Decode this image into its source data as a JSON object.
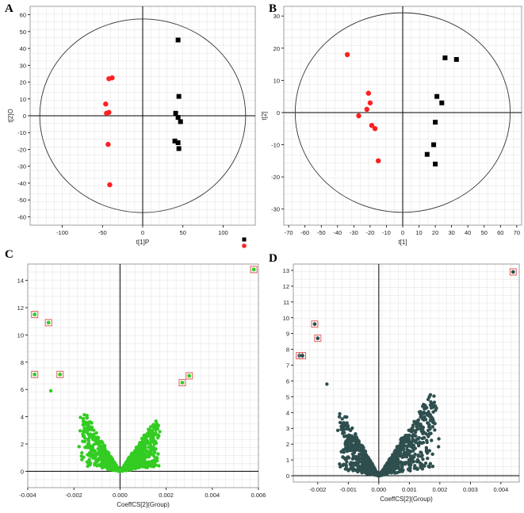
{
  "panel_letters": {
    "a": "A",
    "b": "B",
    "c": "C",
    "d": "D"
  },
  "colors": {
    "group1": "#ff2020",
    "group2": "#000000",
    "volcano_c": "#33cc22",
    "volcano_d": "#2f4f4f",
    "highlight_box": "#e06060",
    "grid": "#e6e6e6",
    "axis": "#000000"
  },
  "chart_data": [
    {
      "id": "A",
      "type": "scatter",
      "title": "",
      "xlabel": "t[1]P",
      "ylabel": "t[2]O",
      "xlim": [
        -140,
        140
      ],
      "ylim": [
        -65,
        65
      ],
      "xticks": [
        -100,
        -50,
        0,
        50,
        100
      ],
      "yticks": [
        -60,
        -50,
        -40,
        -30,
        -20,
        -10,
        0,
        10,
        20,
        30,
        40,
        50,
        60
      ],
      "ellipse": {
        "rx": 128,
        "ry": 57.5
      },
      "grid": true,
      "legend": {
        "position": "bottom-right",
        "entries": [
          "",
          ""
        ]
      },
      "series": [
        {
          "color_key": "group1",
          "marker": "circle",
          "x": [
            -42,
            -38,
            -46,
            -45,
            -42,
            -43,
            -41
          ],
          "y": [
            22,
            22.5,
            7,
            1.5,
            2,
            -17,
            -41
          ]
        },
        {
          "color_key": "group2",
          "marker": "square",
          "x": [
            44,
            45,
            41,
            44,
            47,
            40,
            44,
            45
          ],
          "y": [
            45,
            11.5,
            1.5,
            -1,
            -3.5,
            -15,
            -16,
            -19.5
          ]
        }
      ]
    },
    {
      "id": "B",
      "type": "scatter",
      "title": "",
      "xlabel": "t[1]",
      "ylabel": "t[2]",
      "xlim": [
        -73,
        73
      ],
      "ylim": [
        -35,
        33
      ],
      "xticks": [
        -70,
        -60,
        -50,
        -40,
        -30,
        -20,
        -10,
        0,
        10,
        20,
        30,
        40,
        50,
        60,
        70
      ],
      "yticks": [
        -30,
        -20,
        -10,
        0,
        10,
        20,
        30
      ],
      "ellipse": {
        "rx": 66,
        "ry": 31
      },
      "grid": true,
      "series": [
        {
          "color_key": "group1",
          "marker": "circle",
          "x": [
            -34,
            -21,
            -20,
            -27,
            -22,
            -19,
            -17,
            -15
          ],
          "y": [
            18,
            6,
            3,
            -1,
            1,
            -4,
            -5,
            -15
          ]
        },
        {
          "color_key": "group2",
          "marker": "square",
          "x": [
            26,
            33,
            21,
            24,
            20,
            19,
            15,
            20
          ],
          "y": [
            17,
            16.5,
            5,
            3,
            -3,
            -10,
            -13,
            -16
          ]
        }
      ]
    },
    {
      "id": "C",
      "type": "scatter",
      "title": "",
      "xlabel": "CoeffCS[2](Group)",
      "ylabel": "",
      "xlim": [
        -0.004,
        0.006
      ],
      "ylim": [
        -1.2,
        15.2
      ],
      "xticks": [
        -0.004,
        -0.002,
        0.0,
        0.002,
        0.004,
        0.006
      ],
      "xtick_labels": [
        "-0.004",
        "-0.002",
        "0.000",
        "0.002",
        "0.004",
        "0.006"
      ],
      "yticks": [
        0,
        2,
        4,
        6,
        8,
        10,
        12,
        14
      ],
      "grid": true,
      "cloud": {
        "color_key": "volcano_c",
        "shape": "V",
        "vertex": [
          0.0,
          0.0
        ],
        "left_edge": [
          -0.0017,
          4.2
        ],
        "right_edge": [
          0.0017,
          3.8
        ]
      },
      "highlighted": {
        "x": [
          0.0058,
          -0.0037,
          -0.0031,
          -0.0037,
          -0.0026,
          0.0027,
          0.003
        ],
        "y": [
          14.8,
          11.5,
          10.9,
          7.1,
          7.1,
          6.5,
          7.0
        ]
      },
      "extra_points": {
        "x": [
          -0.003
        ],
        "y": [
          5.9
        ]
      }
    },
    {
      "id": "D",
      "type": "scatter",
      "title": "",
      "xlabel": "CoeffCS[2](Group)",
      "ylabel": "",
      "xlim": [
        -0.0028,
        0.0046
      ],
      "ylim": [
        -0.4,
        13.4
      ],
      "xticks": [
        -0.002,
        -0.001,
        0.0,
        0.001,
        0.002,
        0.003,
        0.004
      ],
      "xtick_labels": [
        "-0.002",
        "-0.001",
        "0.000",
        "0.001",
        "0.002",
        "0.003",
        "0.004"
      ],
      "yticks": [
        0,
        1,
        2,
        3,
        4,
        5,
        6,
        7,
        8,
        9,
        10,
        11,
        12,
        13
      ],
      "grid": true,
      "cloud": {
        "color_key": "volcano_d",
        "shape": "V",
        "vertex": [
          0.0,
          0.0
        ],
        "left_edge": [
          -0.0013,
          4.0
        ],
        "right_edge": [
          0.0019,
          5.2
        ]
      },
      "highlighted": {
        "x": [
          0.0044,
          -0.0021,
          -0.002,
          -0.0026,
          -0.0025
        ],
        "y": [
          12.9,
          9.6,
          8.7,
          7.6,
          7.6
        ]
      },
      "extra_points": {
        "x": [
          -0.0017
        ],
        "y": [
          5.8
        ]
      }
    }
  ]
}
